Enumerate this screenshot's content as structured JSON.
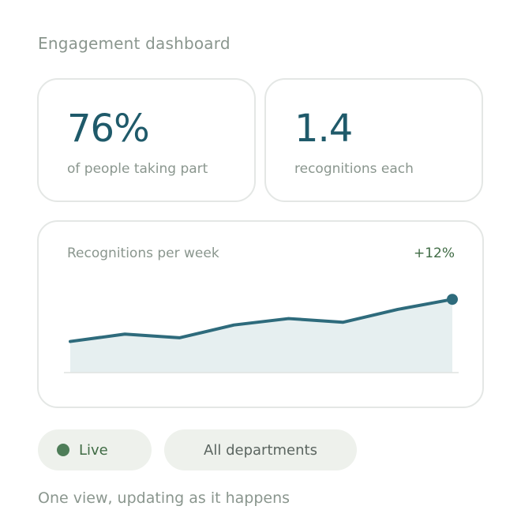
{
  "header": {
    "title": "Engagement dashboard"
  },
  "stats": [
    {
      "value": "76%",
      "label": "of people taking part"
    },
    {
      "value": "1.4",
      "label": "recognitions each"
    }
  ],
  "chart_data": {
    "type": "area",
    "title": "Recognitions per week",
    "delta": "+12%",
    "xlabel": "",
    "ylabel": "",
    "series": [
      {
        "values": [
          34,
          42,
          38,
          52,
          59,
          55,
          69,
          80
        ]
      }
    ],
    "ylim": [
      0,
      100
    ],
    "grid": false,
    "highlight_last_point": true,
    "colors": {
      "line": "#2e6b7c",
      "area": "#e6eff0",
      "baseline": "#dfe3e1"
    }
  },
  "filters": {
    "live_label": "Live",
    "department_label": "All departments"
  },
  "footer": {
    "text": "One view, updating as it happens"
  },
  "colors": {
    "accent": "#1f5a6a",
    "live_green": "#3f6b44",
    "muted_text": "#8a968e",
    "pill_bg": "#eef1ec"
  }
}
